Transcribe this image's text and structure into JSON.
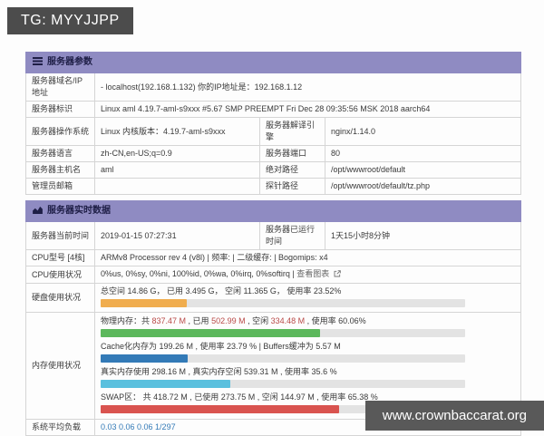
{
  "badges": {
    "top": "TG: MYYJJPP",
    "bottom": "www.crownbaccarat.org"
  },
  "colors": {
    "header_bg": "#8f8bc2",
    "warning_bar": "#f0ad4e",
    "success_bar": "#5cb85c",
    "primary_bar": "#337ab7",
    "info_bar": "#5bc0de",
    "danger_bar": "#d9534f",
    "load_text": "#337ab7",
    "highlight_red": "#b94a48"
  },
  "server_params": {
    "title": "服务器参数",
    "r1": {
      "label": "服务器域名/IP地址",
      "value": "- localhost(192.168.1.132) 你的IP地址是：192.168.1.12"
    },
    "r2": {
      "label": "服务器标识",
      "value": "Linux aml 4.19.7-aml-s9xxx #5.67 SMP PREEMPT Fri Dec 28 09:35:56 MSK 2018 aarch64"
    },
    "r3": {
      "label": "服务器操作系统",
      "value": "Linux 内核版本：4.19.7-aml-s9xxx",
      "label2": "服务器解译引擎",
      "value2": "nginx/1.14.0"
    },
    "r4": {
      "label": "服务器语言",
      "value": "zh-CN,en-US;q=0.9",
      "label2": "服务器端口",
      "value2": "80"
    },
    "r5": {
      "label": "服务器主机名",
      "value": "aml",
      "label2": "绝对路径",
      "value2": "/opt/wwwroot/default"
    },
    "r6": {
      "label": "管理员邮箱",
      "value": "",
      "label2": "探针路径",
      "value2": "/opt/wwwroot/default/tz.php"
    }
  },
  "realtime": {
    "title": "服务器实时数据",
    "time": {
      "label": "服务器当前时间",
      "value": "2019-01-15 07:27:31",
      "label2": "服务器已运行时间",
      "value2": "1天15小时8分钟"
    },
    "cpu_model": {
      "label": "CPU型号 [4核]",
      "value": "ARMv8 Processor rev 4 (v8l) | 频率: | 二级缓存: | Bogomips: x4"
    },
    "cpu_usage": {
      "label": "CPU使用状况",
      "value": "0%us, 0%sy, 0%ni, 100%id, 0%wa, 0%irq, 0%softirq |",
      "link": "查看图表"
    },
    "disk": {
      "label": "硬盘使用状况",
      "text": "总空间 14.86 G， 已用 3.495 G， 空闲 11.365 G， 使用率 23.52%",
      "bar": {
        "percent": 23.52,
        "color": "#f0ad4e"
      }
    },
    "memory": {
      "label": "内存使用状况",
      "physical": {
        "parts": [
          "物理内存：共 ",
          "837.47 M",
          " , 已用 ",
          "502.99 M",
          " , 空闲 ",
          "334.48 M",
          " , 使用率 60.06%"
        ],
        "bar": {
          "percent": 60.06,
          "color": "#5cb85c"
        }
      },
      "cache": {
        "text": "Cache化内存为 199.26 M , 使用率 23.79 % | Buffers缓冲为 5.57 M",
        "bar": {
          "percent": 23.79,
          "color": "#337ab7"
        }
      },
      "real": {
        "text": "真实内存使用 298.16 M , 真实内存空闲 539.31 M , 使用率 35.6 %",
        "bar": {
          "percent": 35.6,
          "color": "#5bc0de"
        }
      },
      "swap": {
        "text": "SWAP区： 共 418.72 M , 已使用 273.75 M , 空闲 144.97 M , 使用率 65.38 %",
        "bar": {
          "percent": 65.38,
          "color": "#d9534f"
        }
      }
    },
    "load": {
      "label": "系统平均负载",
      "value": "0.03 0.06 0.06 1/297"
    }
  }
}
